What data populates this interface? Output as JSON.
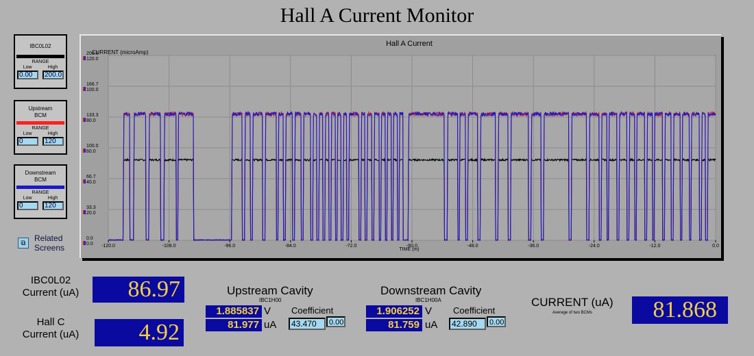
{
  "title": "Hall A Current Monitor",
  "panels": [
    {
      "name": "IBC0L02",
      "color": "#000000",
      "range_label": "RANGE",
      "low_label": "Low",
      "high_label": "High",
      "low": "0.00",
      "high": "200.0"
    },
    {
      "name": "Upstream BCM",
      "color": "#ff2020",
      "range_label": "RANGE",
      "low_label": "Low",
      "high_label": "High",
      "low": "0",
      "high": "120"
    },
    {
      "name": "Downstream BCM",
      "color": "#1a1ac8",
      "range_label": "RANGE",
      "low_label": "Low",
      "high_label": "High",
      "low": "0",
      "high": "120"
    }
  ],
  "related": {
    "label_line1": "Related",
    "label_line2": "Screens",
    "icon": "copy-windows-icon"
  },
  "chart_data": {
    "type": "line",
    "title": "Hall A Current",
    "ylabel": "CURRENT (microAmp)",
    "xlabel": "TIME (m)",
    "xlim": [
      -120,
      0
    ],
    "x_ticks": [
      "-120.0",
      "-108.0",
      "-96.0",
      "-84.0",
      "-72.0",
      "-60.0",
      "-48.0",
      "-36.0",
      "-24.0",
      "-12.0",
      "0.0"
    ],
    "y_ticks_black": [
      "200.0",
      "166.7",
      "133.3",
      "100.0",
      "66.7",
      "33.3",
      "0.0"
    ],
    "y_ticks_colored": [
      "120.0",
      "100.0",
      "80.0",
      "60.0",
      "40.0",
      "20.0",
      "0.0"
    ],
    "grid": true,
    "series": [
      {
        "name": "IBC0L02",
        "color": "#000000",
        "base": 87,
        "range": [
          0,
          200
        ]
      },
      {
        "name": "Upstream BCM",
        "color": "#e02020",
        "base": 82,
        "range": [
          0,
          120
        ]
      },
      {
        "name": "Downstream BCM",
        "color": "#1a1acc",
        "base": 82,
        "range": [
          0,
          120
        ]
      }
    ],
    "beam_on_segments": [
      [
        -117.0,
        -115.8
      ],
      [
        -115.0,
        -112.6
      ],
      [
        -112.0,
        -109.7
      ],
      [
        -109.0,
        -106.6
      ],
      [
        -106.2,
        -103.2
      ],
      [
        -95.6,
        -93.6
      ],
      [
        -93.0,
        -91.9
      ],
      [
        -91.5,
        -89.5
      ],
      [
        -89.0,
        -86.8
      ],
      [
        -86.4,
        -85.4
      ],
      [
        -85.0,
        -83.6
      ],
      [
        -83.2,
        -81.9
      ],
      [
        -81.5,
        -80.0
      ],
      [
        -79.6,
        -78.8
      ],
      [
        -78.4,
        -77.6
      ],
      [
        -77.2,
        -76.4
      ],
      [
        -76.0,
        -75.1
      ],
      [
        -74.8,
        -74.0
      ],
      [
        -73.6,
        -72.9
      ],
      [
        -72.5,
        -70.5
      ],
      [
        -70.1,
        -69.3
      ],
      [
        -68.9,
        -67.9
      ],
      [
        -67.5,
        -66.5
      ],
      [
        -66.1,
        -65.3
      ],
      [
        -64.9,
        -64.1
      ],
      [
        -63.7,
        -62.9
      ],
      [
        -62.5,
        -61.8
      ],
      [
        -60.7,
        -53.6
      ],
      [
        -53.0,
        -51.0
      ],
      [
        -50.6,
        -49.4
      ],
      [
        -49.0,
        -47.0
      ],
      [
        -46.5,
        -43.5
      ],
      [
        -43.0,
        -41.0
      ],
      [
        -40.5,
        -37.0
      ],
      [
        -36.5,
        -34.5
      ],
      [
        -34.0,
        -29.0
      ],
      [
        -28.5,
        -25.5
      ],
      [
        -25.0,
        -23.0
      ],
      [
        -22.6,
        -21.5
      ],
      [
        -21.1,
        -19.5
      ],
      [
        -19.1,
        -17.5
      ],
      [
        -17.1,
        -16.0
      ],
      [
        -15.6,
        -14.0
      ],
      [
        -13.6,
        -12.5
      ],
      [
        -12.1,
        -10.5
      ],
      [
        -10.1,
        -8.8
      ],
      [
        -8.4,
        -7.0
      ],
      [
        -6.6,
        -5.2
      ],
      [
        -4.8,
        -3.2
      ],
      [
        -2.8,
        -2.0
      ],
      [
        -1.6,
        0.0
      ]
    ]
  },
  "readouts": {
    "ibc0l02": {
      "label_line1": "IBC0L02",
      "label_line2": "Current (uA)",
      "value": "86.97"
    },
    "hallc": {
      "label_line1": "Hall C",
      "label_line2": "Current (uA)",
      "value": "4.92"
    },
    "upstream": {
      "title": "Upstream Cavity",
      "sub": "IBC1H00",
      "voltage": "1.885837",
      "v_unit": "V",
      "current": "81.977",
      "c_unit": "uA",
      "coef_label": "Coefficient",
      "coefficient": "43.470",
      "offset": "0.00"
    },
    "downstream": {
      "title": "Downstream Cavity",
      "sub": "IBC1H00A",
      "voltage": "1.906252",
      "v_unit": "V",
      "current": "81.759",
      "c_unit": "uA",
      "coef_label": "Coefficient",
      "coefficient": "42.890",
      "offset": "0.00"
    },
    "current": {
      "label": "CURRENT (uA)",
      "sub": "Average of two BCMs",
      "value": "81.868"
    }
  }
}
